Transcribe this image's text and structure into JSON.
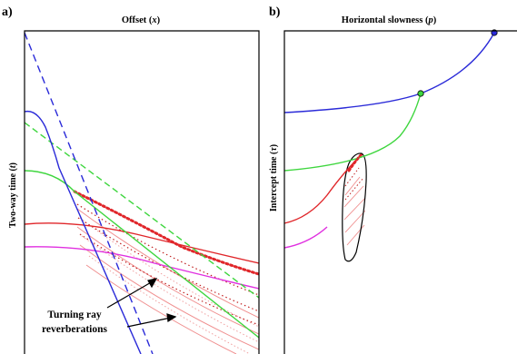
{
  "panel_a": {
    "label": "a)",
    "title_prefix": "Offset (",
    "title_var": "x",
    "title_suffix": ")",
    "ylabel_prefix": "Two-way time (",
    "ylabel_var": "t",
    "ylabel_suffix": ")",
    "annotation_line1": "Turning ray",
    "annotation_line2": "reverberations"
  },
  "panel_b": {
    "label": "b)",
    "title_prefix": "Horizontal slowness (",
    "title_var": "p",
    "title_suffix": ")",
    "ylabel_prefix": "Intercept time (",
    "ylabel_var": "τ",
    "ylabel_suffix": ")"
  },
  "colors": {
    "blue": "#2a2ad8",
    "green": "#3ed63e",
    "red": "#e0262a",
    "magenta": "#e030e0",
    "pink": "#f09090",
    "dotted_red": "#c02020"
  }
}
